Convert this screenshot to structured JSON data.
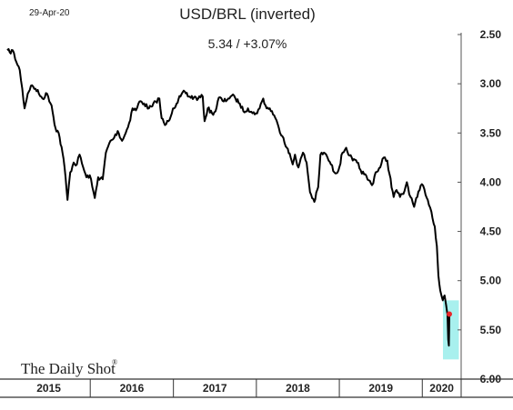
{
  "header": {
    "date": "29-Apr-20",
    "title": "USD/BRL (inverted)",
    "subtitle": "5.34  /  +3.07%"
  },
  "brand": {
    "name": "The Daily Shot",
    "mark": "®"
  },
  "colors": {
    "line": "#000000",
    "highlight": "#a8f0ee",
    "last_point": "#e8262a",
    "axis": "#555555"
  },
  "chart_data": {
    "type": "line",
    "title": "USD/BRL (inverted)",
    "subtitle": "5.34  /  +3.07%",
    "y_inverted": true,
    "ylim": [
      2.5,
      6.0
    ],
    "y_ticks": [
      "2.50",
      "3.00",
      "3.50",
      "4.00",
      "4.50",
      "5.00",
      "5.50",
      "6.00"
    ],
    "x_ticks": [
      "2015",
      "2016",
      "2017",
      "2018",
      "2019",
      "2020"
    ],
    "x_range": [
      "2015-01-01",
      "2020-06-20"
    ],
    "series": [
      {
        "values": [
          [
            "2015-01-01",
            2.66
          ],
          [
            "2015-01-12",
            2.68
          ],
          [
            "2015-01-25",
            2.66
          ],
          [
            "2015-02-10",
            2.78
          ],
          [
            "2015-02-25",
            2.86
          ],
          [
            "2015-03-08",
            3.05
          ],
          [
            "2015-03-18",
            3.25
          ],
          [
            "2015-04-01",
            3.1
          ],
          [
            "2015-04-15",
            3.02
          ],
          [
            "2015-05-05",
            3.05
          ],
          [
            "2015-05-20",
            3.1
          ],
          [
            "2015-06-05",
            3.15
          ],
          [
            "2015-06-25",
            3.1
          ],
          [
            "2015-07-15",
            3.22
          ],
          [
            "2015-08-01",
            3.45
          ],
          [
            "2015-08-15",
            3.5
          ],
          [
            "2015-09-01",
            3.7
          ],
          [
            "2015-09-10",
            3.85
          ],
          [
            "2015-09-23",
            4.18
          ],
          [
            "2015-10-05",
            3.9
          ],
          [
            "2015-10-20",
            3.8
          ],
          [
            "2015-11-03",
            3.82
          ],
          [
            "2015-11-15",
            3.72
          ],
          [
            "2015-12-01",
            3.85
          ],
          [
            "2015-12-15",
            3.95
          ],
          [
            "2015-12-30",
            3.93
          ],
          [
            "2016-01-10",
            4.05
          ],
          [
            "2016-01-21",
            4.16
          ],
          [
            "2016-02-05",
            3.95
          ],
          [
            "2016-02-25",
            3.97
          ],
          [
            "2016-03-10",
            3.7
          ],
          [
            "2016-03-30",
            3.58
          ],
          [
            "2016-04-15",
            3.55
          ],
          [
            "2016-05-01",
            3.48
          ],
          [
            "2016-05-20",
            3.58
          ],
          [
            "2016-06-05",
            3.5
          ],
          [
            "2016-06-20",
            3.4
          ],
          [
            "2016-07-05",
            3.25
          ],
          [
            "2016-07-20",
            3.27
          ],
          [
            "2016-08-05",
            3.18
          ],
          [
            "2016-08-25",
            3.2
          ],
          [
            "2016-09-15",
            3.25
          ],
          [
            "2016-09-30",
            3.23
          ],
          [
            "2016-10-15",
            3.18
          ],
          [
            "2016-10-31",
            3.15
          ],
          [
            "2016-11-10",
            3.35
          ],
          [
            "2016-11-25",
            3.42
          ],
          [
            "2016-12-10",
            3.38
          ],
          [
            "2016-12-30",
            3.25
          ],
          [
            "2017-01-15",
            3.2
          ],
          [
            "2017-02-01",
            3.13
          ],
          [
            "2017-02-20",
            3.08
          ],
          [
            "2017-03-10",
            3.13
          ],
          [
            "2017-04-01",
            3.14
          ],
          [
            "2017-04-20",
            3.15
          ],
          [
            "2017-05-10",
            3.13
          ],
          [
            "2017-05-18",
            3.38
          ],
          [
            "2017-06-01",
            3.25
          ],
          [
            "2017-06-20",
            3.3
          ],
          [
            "2017-07-05",
            3.28
          ],
          [
            "2017-07-20",
            3.14
          ],
          [
            "2017-08-10",
            3.18
          ],
          [
            "2017-08-30",
            3.15
          ],
          [
            "2017-09-15",
            3.12
          ],
          [
            "2017-10-01",
            3.15
          ],
          [
            "2017-10-20",
            3.2
          ],
          [
            "2017-11-05",
            3.28
          ],
          [
            "2017-11-25",
            3.25
          ],
          [
            "2017-12-15",
            3.3
          ],
          [
            "2017-12-30",
            3.3
          ],
          [
            "2018-01-15",
            3.25
          ],
          [
            "2018-01-31",
            3.15
          ],
          [
            "2018-02-15",
            3.25
          ],
          [
            "2018-03-01",
            3.25
          ],
          [
            "2018-03-20",
            3.32
          ],
          [
            "2018-04-10",
            3.45
          ],
          [
            "2018-04-30",
            3.55
          ],
          [
            "2018-05-15",
            3.65
          ],
          [
            "2018-06-01",
            3.75
          ],
          [
            "2018-06-10",
            3.82
          ],
          [
            "2018-06-20",
            3.72
          ],
          [
            "2018-07-05",
            3.85
          ],
          [
            "2018-07-25",
            3.7
          ],
          [
            "2018-08-10",
            3.8
          ],
          [
            "2018-08-25",
            4.1
          ],
          [
            "2018-09-13",
            4.2
          ],
          [
            "2018-09-30",
            4.05
          ],
          [
            "2018-10-10",
            3.72
          ],
          [
            "2018-10-25",
            3.7
          ],
          [
            "2018-11-10",
            3.75
          ],
          [
            "2018-11-25",
            3.82
          ],
          [
            "2018-12-10",
            3.9
          ],
          [
            "2018-12-28",
            3.88
          ],
          [
            "2019-01-15",
            3.7
          ],
          [
            "2019-01-31",
            3.65
          ],
          [
            "2019-02-15",
            3.73
          ],
          [
            "2019-03-01",
            3.78
          ],
          [
            "2019-03-20",
            3.8
          ],
          [
            "2019-04-05",
            3.88
          ],
          [
            "2019-04-20",
            3.92
          ],
          [
            "2019-05-10",
            3.98
          ],
          [
            "2019-05-25",
            4.03
          ],
          [
            "2019-06-10",
            3.9
          ],
          [
            "2019-06-30",
            3.85
          ],
          [
            "2019-07-15",
            3.75
          ],
          [
            "2019-07-31",
            3.78
          ],
          [
            "2019-08-10",
            3.92
          ],
          [
            "2019-08-28",
            4.15
          ],
          [
            "2019-09-10",
            4.08
          ],
          [
            "2019-09-25",
            4.15
          ],
          [
            "2019-10-10",
            4.12
          ],
          [
            "2019-10-25",
            4.0
          ],
          [
            "2019-11-10",
            4.15
          ],
          [
            "2019-11-26",
            4.25
          ],
          [
            "2019-12-10",
            4.15
          ],
          [
            "2019-12-30",
            4.02
          ],
          [
            "2020-01-10",
            4.07
          ],
          [
            "2020-01-25",
            4.18
          ],
          [
            "2020-02-10",
            4.3
          ],
          [
            "2020-02-25",
            4.45
          ],
          [
            "2020-03-05",
            4.65
          ],
          [
            "2020-03-12",
            4.95
          ],
          [
            "2020-03-20",
            5.1
          ],
          [
            "2020-03-31",
            5.2
          ],
          [
            "2020-04-08",
            5.15
          ],
          [
            "2020-04-15",
            5.25
          ],
          [
            "2020-04-21",
            5.35
          ],
          [
            "2020-04-24",
            5.6
          ],
          [
            "2020-04-27",
            5.66
          ],
          [
            "2020-04-28",
            5.5
          ],
          [
            "2020-04-29",
            5.34
          ]
        ]
      }
    ],
    "last_value": 5.34,
    "highlight_box": {
      "x": [
        "2020-04-01",
        "2020-06-10"
      ],
      "y": [
        5.2,
        5.8
      ]
    }
  }
}
